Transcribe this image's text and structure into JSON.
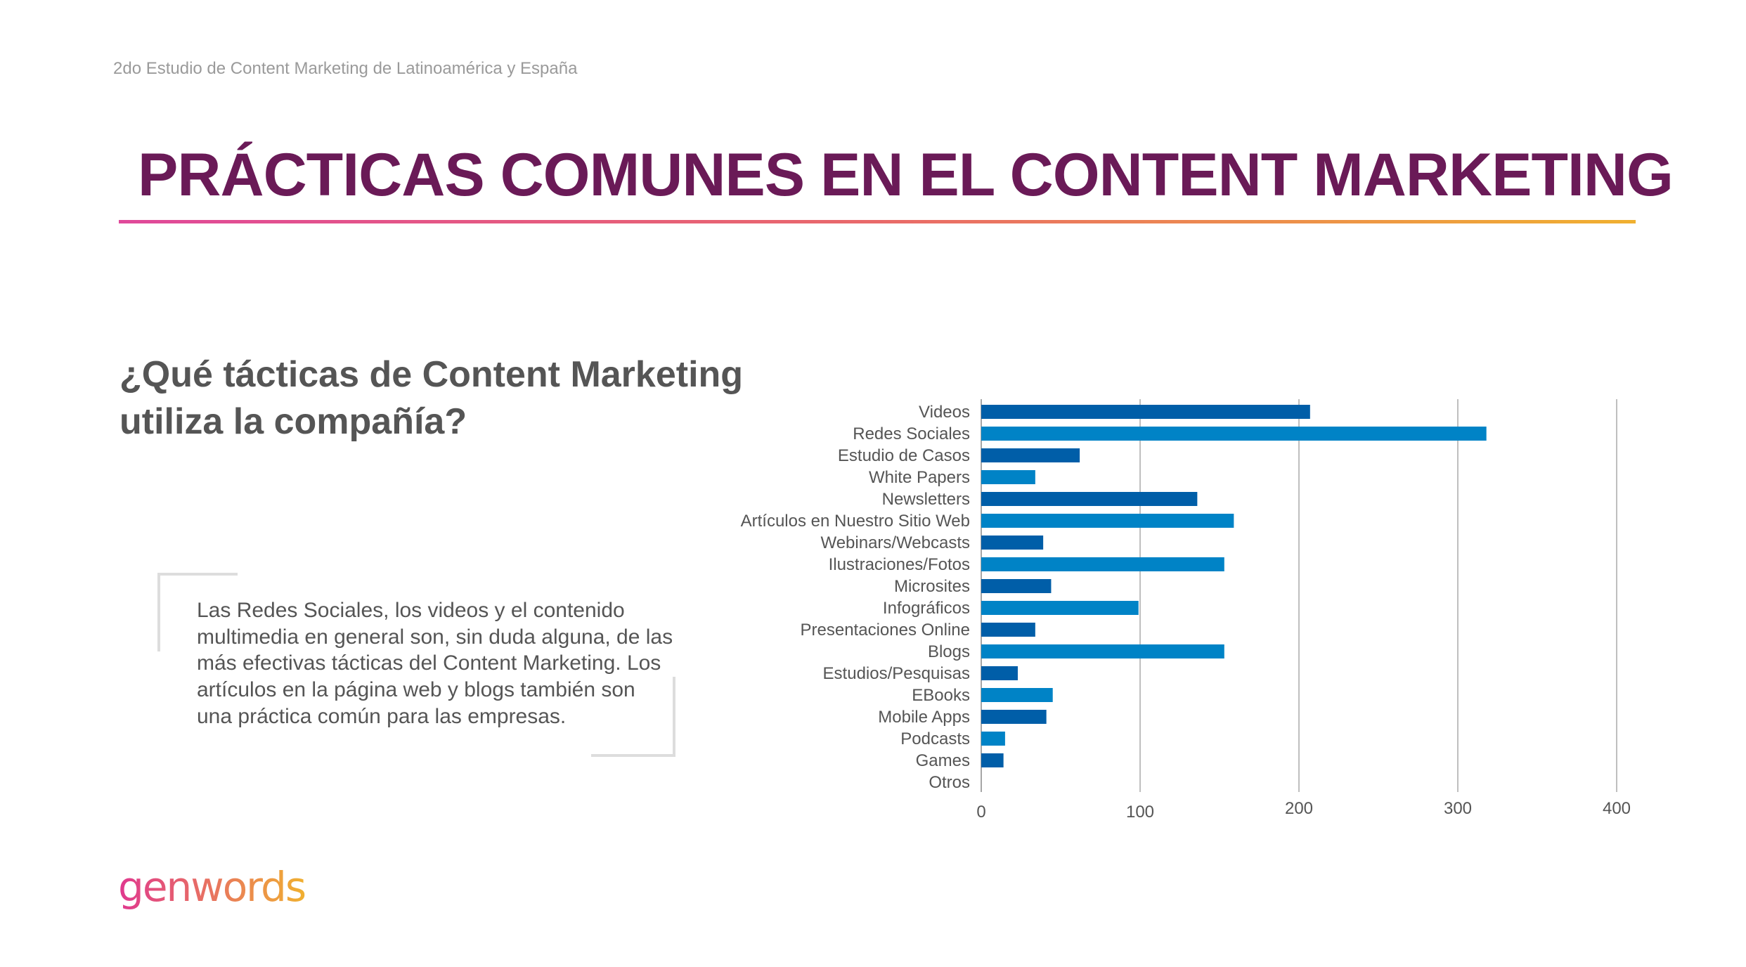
{
  "header": {
    "supertitle": "2do Estudio de Content Marketing de Latinoamérica y España",
    "title": "PRÁCTICAS COMUNES EN EL CONTENT MARKETING"
  },
  "question": "¿Qué tácticas de Content Marketing utiliza la compañía?",
  "quote": "Las Redes Sociales, los videos y el contenido multimedia en general son, sin duda alguna, de las más efectivas tácticas del Content Marketing. Los artículos en la página web y blogs también son una práctica común para las empresas.",
  "logo": "genwords",
  "colors": {
    "dark": "#005ea8",
    "light": "#0083c6",
    "title": "#6a1a57"
  },
  "chart_data": {
    "type": "bar",
    "orientation": "horizontal",
    "categories": [
      "Videos",
      "Redes Sociales",
      "Estudio de Casos",
      "White Papers",
      "Newsletters",
      "Artículos en Nuestro Sitio Web",
      "Webinars/Webcasts",
      "Ilustraciones/Fotos",
      "Microsites",
      "Infográficos",
      "Presentaciones Online",
      "Blogs",
      "Estudios/Pesquisas",
      "EBooks",
      "Mobile Apps",
      "Podcasts",
      "Games",
      "Otros"
    ],
    "values": [
      207,
      318,
      62,
      34,
      136,
      159,
      39,
      153,
      44,
      99,
      34,
      153,
      23,
      45,
      41,
      15,
      14,
      0
    ],
    "xlim": [
      0,
      400
    ],
    "xticks": [
      "0",
      "100",
      "200",
      "300",
      "400"
    ],
    "grid": true,
    "title": "",
    "xlabel": "",
    "ylabel": ""
  }
}
